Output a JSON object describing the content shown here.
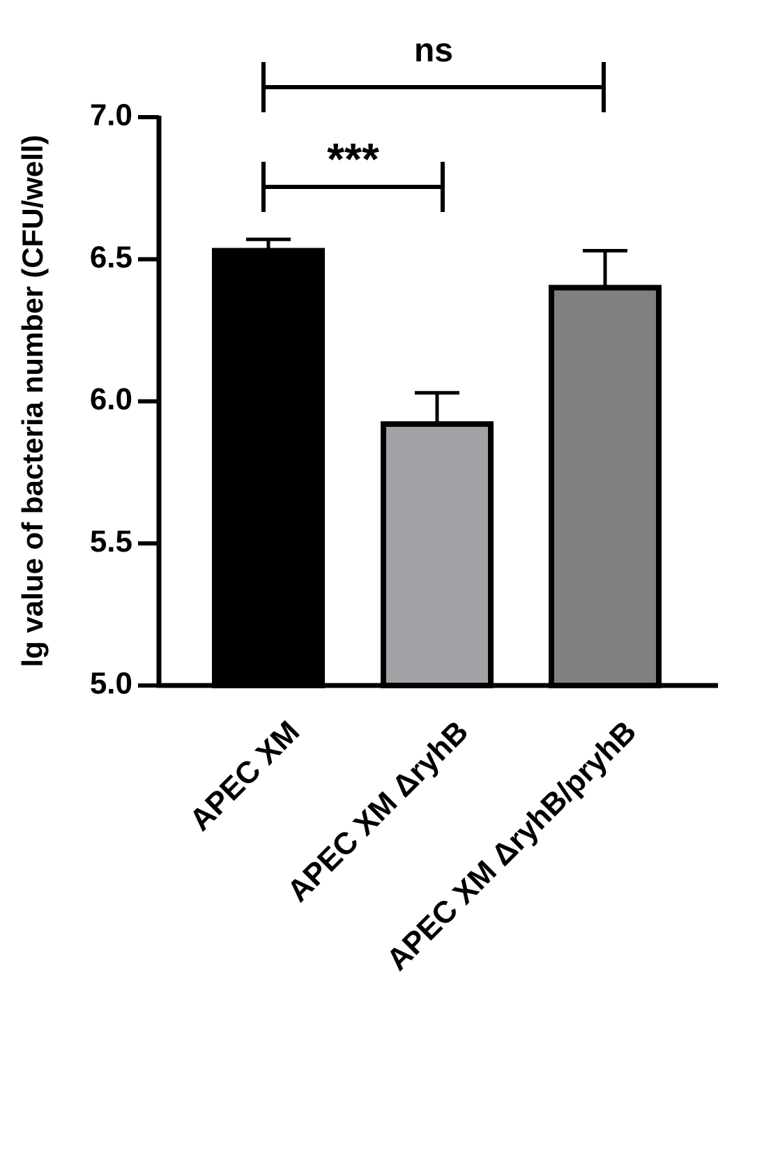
{
  "chart_data": {
    "type": "bar",
    "y_label": "lg value of bacteria number (CFU/well)",
    "categories": [
      "APEC XM",
      "APEC XM ΔryhB",
      "APEC XM ΔryhB/pryhB"
    ],
    "values": [
      6.53,
      5.92,
      6.4
    ],
    "errors": [
      0.04,
      0.11,
      0.13
    ],
    "colors": [
      "#000000",
      "#a2a2a6",
      "#808080"
    ],
    "ylim": [
      5,
      7
    ],
    "yticks": [
      {
        "value": 5,
        "label": "5.0"
      },
      {
        "value": 5.5,
        "label": "5.5"
      },
      {
        "value": 6,
        "label": "6.0"
      },
      {
        "value": 6.5,
        "label": "6.5"
      },
      {
        "value": 7,
        "label": "7.0"
      }
    ],
    "annotations": [
      {
        "text": "***"
      },
      {
        "text": "ns"
      }
    ]
  }
}
